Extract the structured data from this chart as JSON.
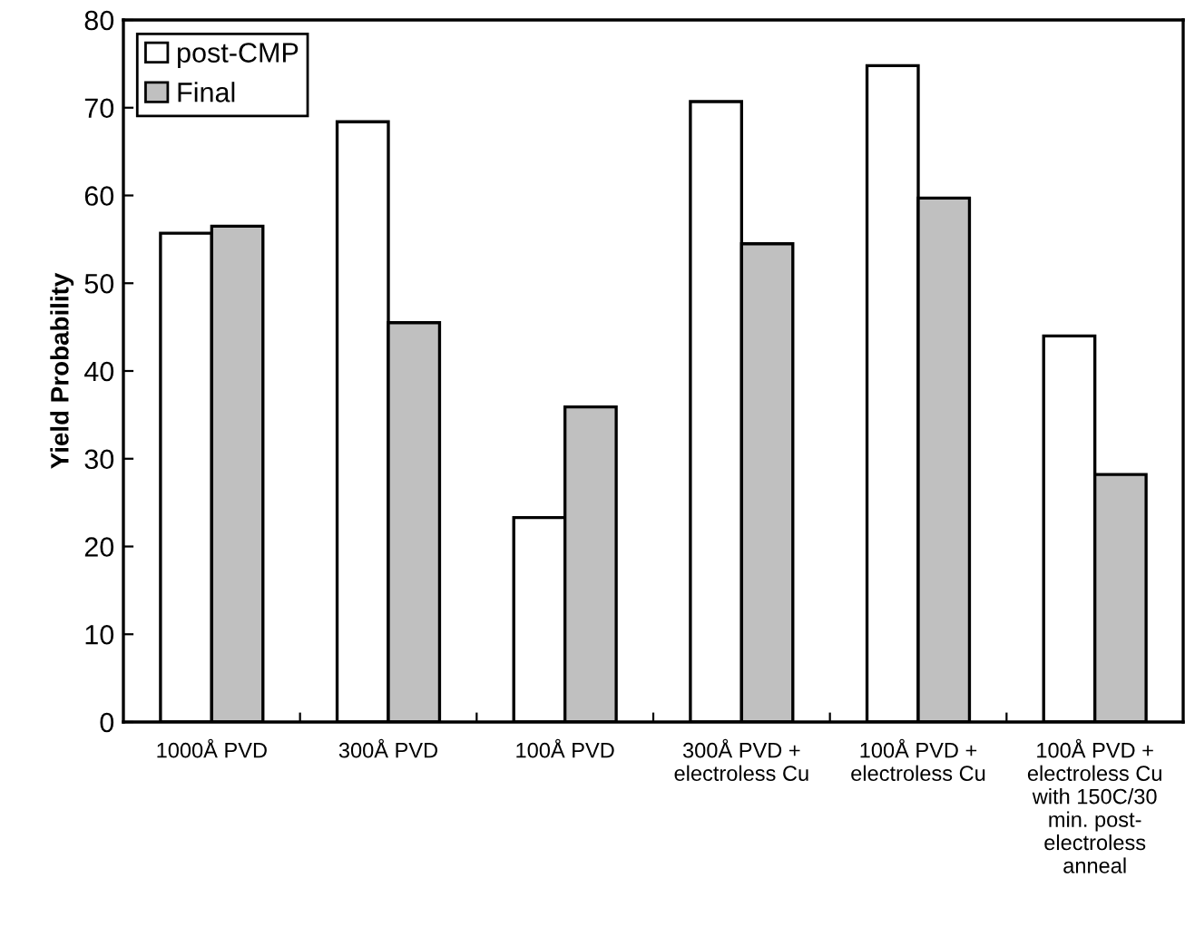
{
  "chart_data": {
    "type": "bar",
    "ylabel": "Yield Probability",
    "categories": [
      "1000Å PVD",
      "300Å PVD",
      "100Å PVD",
      "300Å PVD +\nelectroless Cu",
      "100Å PVD +\nelectroless Cu",
      "100Å PVD +\nelectroless Cu\nwith 150C/30\nmin. post-\nelectroless\nanneal"
    ],
    "series": [
      {
        "name": "post-CMP",
        "color": "#ffffff",
        "values": [
          55.7,
          68.4,
          23.3,
          70.7,
          74.8,
          44.0
        ]
      },
      {
        "name": "Final",
        "color": "#c0c0c0",
        "values": [
          56.5,
          45.5,
          35.9,
          54.5,
          59.7,
          28.2
        ]
      }
    ],
    "ylim": [
      0,
      80
    ],
    "yticks": [
      0,
      10,
      20,
      30,
      40,
      50,
      60,
      70,
      80
    ],
    "grid": false,
    "legend": "top left"
  }
}
